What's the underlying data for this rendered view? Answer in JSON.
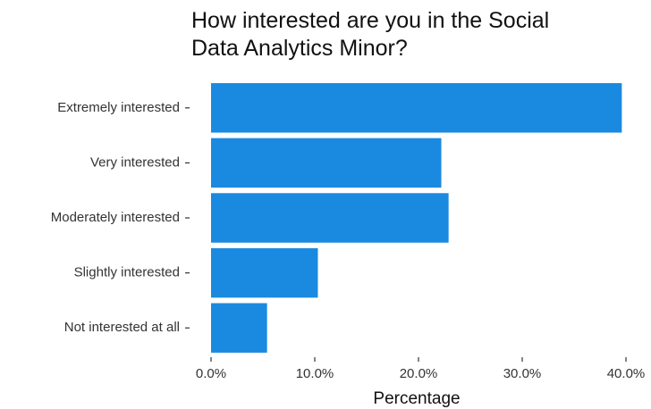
{
  "chart_data": {
    "type": "bar",
    "orientation": "horizontal",
    "title": "How interested are you in the Social Data Analytics Minor?",
    "x_label": "Percentage",
    "categories": [
      "Extremely interested",
      "Very interested",
      "Moderately interested",
      "Slightly interested",
      "Not interested at all"
    ],
    "values": [
      39.6,
      22.2,
      22.9,
      10.3,
      5.4
    ],
    "color": "#1a8ae0",
    "xlim": [
      0,
      40
    ],
    "xticks": [
      {
        "value": 0,
        "label": "0.0%"
      },
      {
        "value": 10,
        "label": "10.0%"
      },
      {
        "value": 20,
        "label": "20.0%"
      },
      {
        "value": 30,
        "label": "30.0%"
      },
      {
        "value": 40,
        "label": "40.0%"
      }
    ],
    "grid": false
  }
}
